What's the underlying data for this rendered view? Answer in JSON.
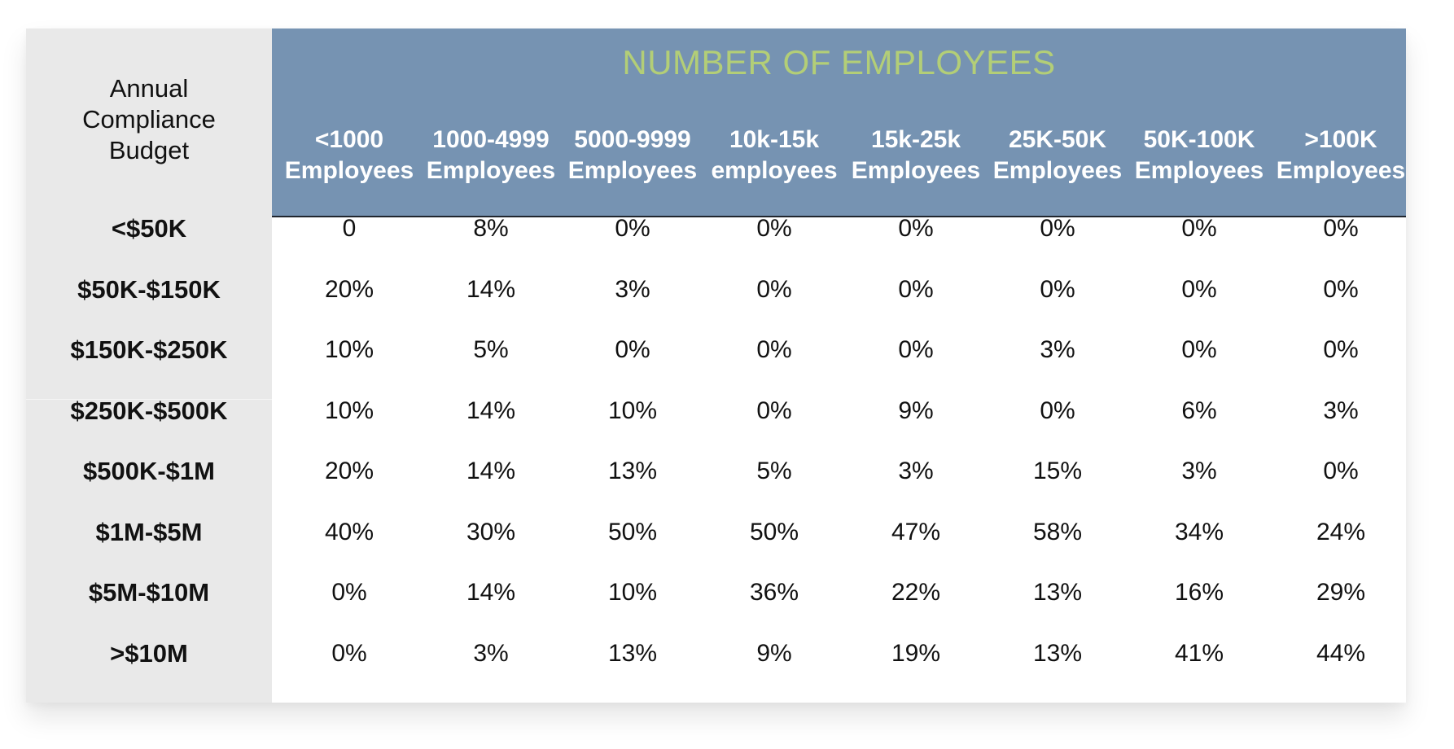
{
  "chart_data": {
    "type": "table",
    "header_title": "NUMBER OF EMPLOYEES",
    "corner_label": [
      "Annual",
      "Compliance",
      "Budget"
    ],
    "columns": [
      [
        "<1000",
        "Employees"
      ],
      [
        "1000-4999",
        "Employees"
      ],
      [
        "5000-9999",
        "Employees"
      ],
      [
        "10k-15k",
        "employees"
      ],
      [
        "15k-25k",
        "Employees"
      ],
      [
        "25K-50K",
        "Employees"
      ],
      [
        "50K-100K",
        "Employees"
      ],
      [
        ">100K",
        "Employees"
      ]
    ],
    "rows": [
      {
        "label": "<$50K",
        "values": [
          "0",
          "8%",
          "0%",
          "0%",
          "0%",
          "0%",
          "0%",
          "0%"
        ]
      },
      {
        "label": "$50K-$150K",
        "values": [
          "20%",
          "14%",
          "3%",
          "0%",
          "0%",
          "0%",
          "0%",
          "0%"
        ]
      },
      {
        "label": "$150K-$250K",
        "values": [
          "10%",
          "5%",
          "0%",
          "0%",
          "0%",
          "3%",
          "0%",
          "0%"
        ]
      },
      {
        "label": "$250K-$500K",
        "values": [
          "10%",
          "14%",
          "10%",
          "0%",
          "9%",
          "0%",
          "6%",
          "3%"
        ]
      },
      {
        "label": "$500K-$1M",
        "values": [
          "20%",
          "14%",
          "13%",
          "5%",
          "3%",
          "15%",
          "3%",
          "0%"
        ]
      },
      {
        "label": "$1M-$5M",
        "values": [
          "40%",
          "30%",
          "50%",
          "50%",
          "47%",
          "58%",
          "34%",
          "24%"
        ]
      },
      {
        "label": "$5M-$10M",
        "values": [
          "0%",
          "14%",
          "10%",
          "36%",
          "22%",
          "13%",
          "16%",
          "29%"
        ]
      },
      {
        "label": ">$10M",
        "values": [
          "0%",
          "3%",
          "13%",
          "9%",
          "19%",
          "13%",
          "41%",
          "44%"
        ]
      }
    ]
  },
  "colors": {
    "header_bg": "#7693b2",
    "header_title": "#b3ce77",
    "header_text": "#ffffff",
    "row_header_bg": "#e9e9e9",
    "text": "#111111"
  }
}
